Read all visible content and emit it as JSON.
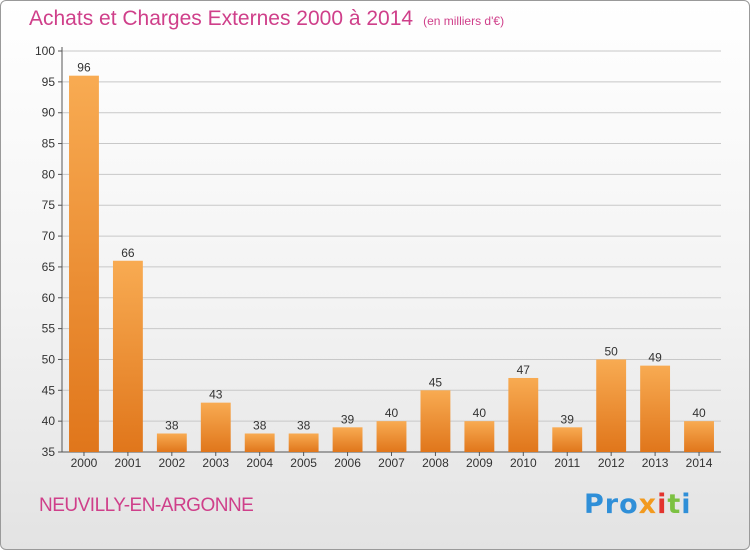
{
  "title": "Achats et Charges Externes 2000 à 2014",
  "subtitle": "(en milliers d'€)",
  "city": "NEUVILLY-EN-ARGONNE",
  "logo": {
    "part1": "Pro",
    "part2": "x",
    "part3": "i",
    "part4": "t",
    "part5": "i"
  },
  "colors": {
    "title": "#cf3f8a",
    "bar_light": "#f8a94e",
    "bar_dark": "#e37a1d",
    "grid": "#c8c8c8"
  },
  "chart_data": {
    "type": "bar",
    "categories": [
      "2000",
      "2001",
      "2002",
      "2003",
      "2004",
      "2005",
      "2006",
      "2007",
      "2008",
      "2009",
      "2010",
      "2011",
      "2012",
      "2013",
      "2014"
    ],
    "values": [
      96,
      66,
      38,
      43,
      38,
      38,
      39,
      40,
      45,
      40,
      47,
      39,
      50,
      49,
      40
    ],
    "data_labels": [
      "96",
      "66",
      "38",
      "43",
      "38",
      "38",
      "39",
      "40",
      "45",
      "40",
      "47",
      "39",
      "50",
      "49",
      "40"
    ],
    "ylim": [
      35,
      100
    ],
    "yticks": [
      "35",
      "40",
      "45",
      "50",
      "55",
      "60",
      "65",
      "70",
      "75",
      "80",
      "85",
      "90",
      "95",
      "100"
    ],
    "grid": true,
    "xlabel": "",
    "ylabel": ""
  }
}
